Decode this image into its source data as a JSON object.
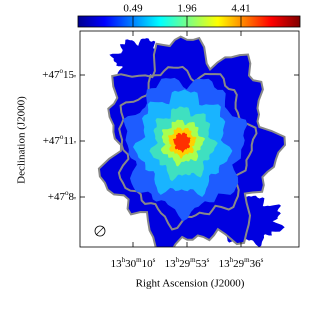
{
  "colorbar": {
    "ticks": [
      "0.49",
      "1.96",
      "4.41"
    ]
  },
  "x_axis": {
    "title": "Right Ascension (J2000)",
    "ticks": [
      [
        "13",
        "h",
        "30",
        "m",
        "10",
        "s"
      ],
      [
        "13",
        "h",
        "29",
        "m",
        "53",
        "s"
      ],
      [
        "13",
        "h",
        "29",
        "m",
        "36",
        "s"
      ]
    ]
  },
  "y_axis": {
    "title": "Declination (J2000)",
    "ticks": [
      [
        "+47",
        "o",
        "15",
        "'"
      ],
      [
        "+47",
        "o",
        "11",
        "'"
      ],
      [
        "+47",
        "o",
        "8",
        "'"
      ]
    ]
  }
}
